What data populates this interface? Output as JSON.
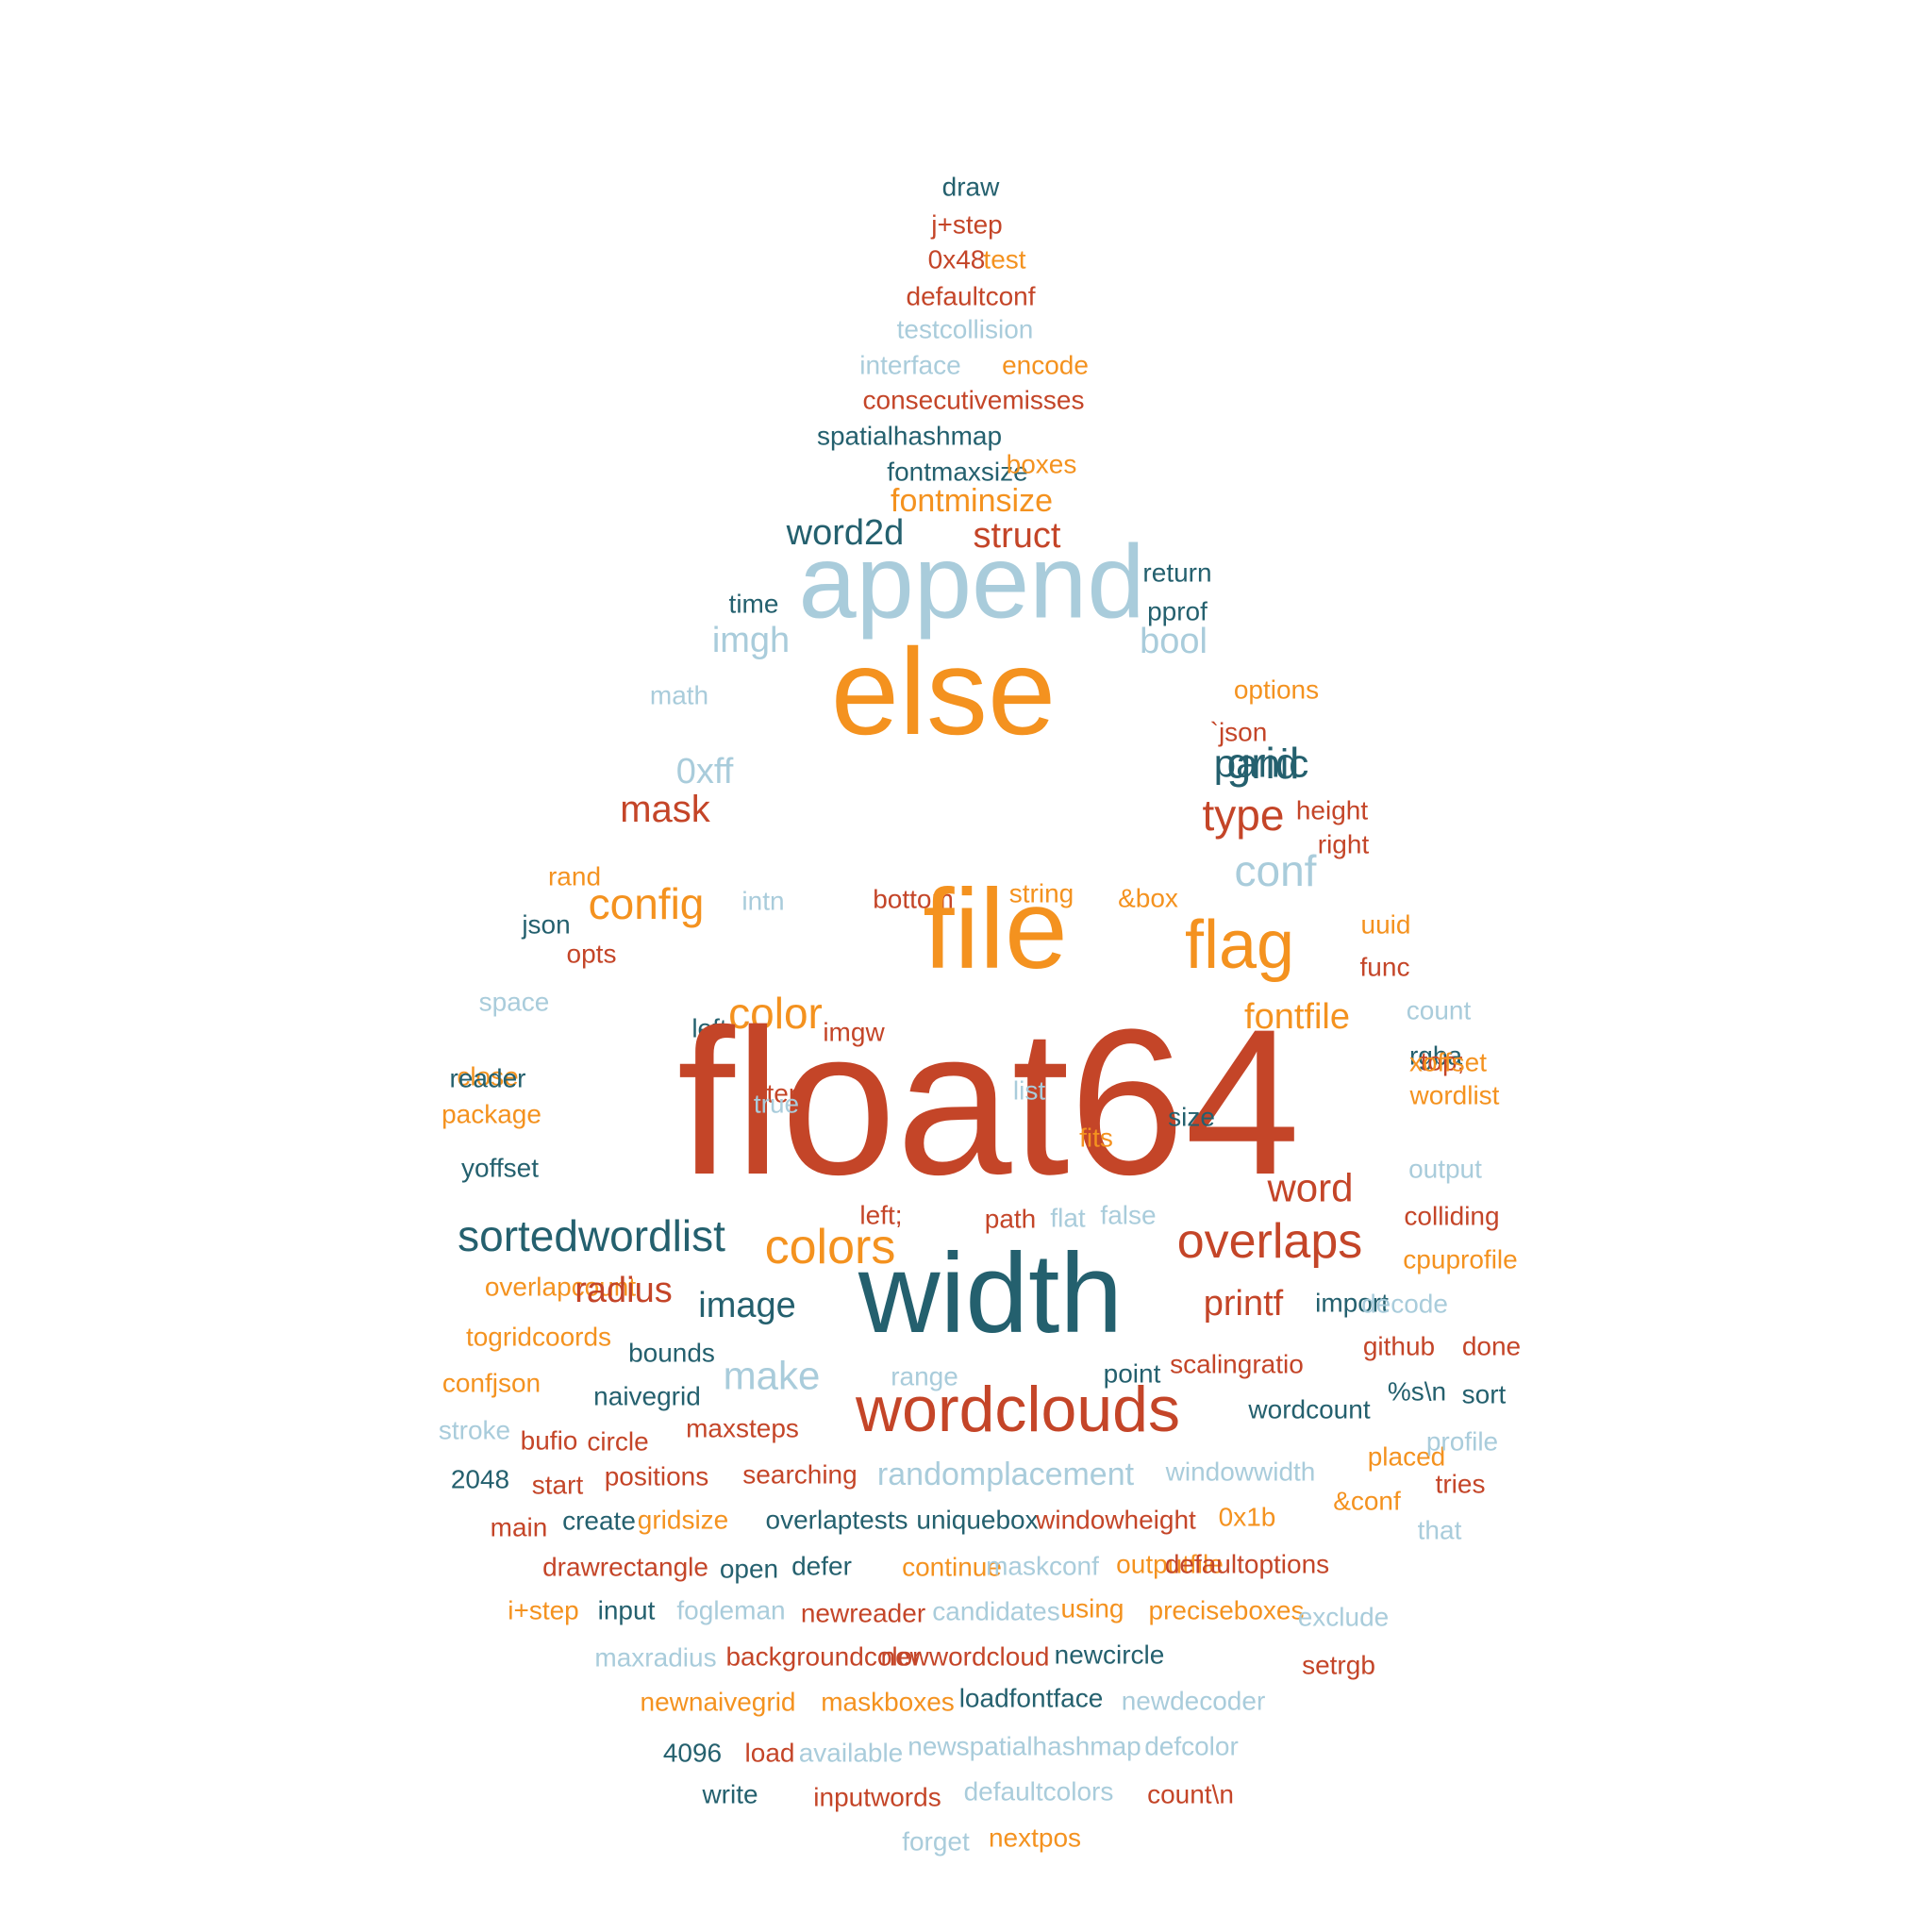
{
  "palette": {
    "red": "#c44528",
    "teal": "#24606e",
    "orange": "#f4921f",
    "light": "#a9ccdb"
  },
  "words": [
    {
      "text": "draw",
      "color": "teal"
    },
    {
      "text": "j+step",
      "color": "red"
    },
    {
      "text": "0x48",
      "color": "red"
    },
    {
      "text": "test",
      "color": "orange"
    },
    {
      "text": "defaultconf",
      "color": "red"
    },
    {
      "text": "testcollision",
      "color": "light"
    },
    {
      "text": "interface",
      "color": "light"
    },
    {
      "text": "encode",
      "color": "orange"
    },
    {
      "text": "consecutivemisses",
      "color": "red"
    },
    {
      "text": "spatialhashmap",
      "color": "teal"
    },
    {
      "text": "fontmaxsize",
      "color": "teal"
    },
    {
      "text": "boxes",
      "color": "orange"
    },
    {
      "text": "fontminsize",
      "color": "orange"
    },
    {
      "text": "word2d",
      "color": "teal"
    },
    {
      "text": "struct",
      "color": "red"
    },
    {
      "text": "append",
      "color": "light"
    },
    {
      "text": "return",
      "color": "teal"
    },
    {
      "text": "time",
      "color": "teal"
    },
    {
      "text": "pprof",
      "color": "teal"
    },
    {
      "text": "imgh",
      "color": "light"
    },
    {
      "text": "bool",
      "color": "light"
    },
    {
      "text": "math",
      "color": "light"
    },
    {
      "text": "options",
      "color": "orange"
    },
    {
      "text": "else",
      "color": "orange"
    },
    {
      "text": "`json",
      "color": "red"
    },
    {
      "text": "panic",
      "color": "teal"
    },
    {
      "text": "0xff",
      "color": "light"
    },
    {
      "text": "grid",
      "color": "teal"
    },
    {
      "text": "mask",
      "color": "red"
    },
    {
      "text": "type",
      "color": "red"
    },
    {
      "text": "height",
      "color": "red"
    },
    {
      "text": "right",
      "color": "red"
    },
    {
      "text": "rand",
      "color": "orange"
    },
    {
      "text": "conf",
      "color": "light"
    },
    {
      "text": "config",
      "color": "orange"
    },
    {
      "text": "intn",
      "color": "light"
    },
    {
      "text": "bottom",
      "color": "red"
    },
    {
      "text": "string",
      "color": "orange"
    },
    {
      "text": "&box",
      "color": "orange"
    },
    {
      "text": "json",
      "color": "teal"
    },
    {
      "text": "file",
      "color": "orange"
    },
    {
      "text": "flag",
      "color": "orange"
    },
    {
      "text": "uuid",
      "color": "orange"
    },
    {
      "text": "opts",
      "color": "red"
    },
    {
      "text": "func",
      "color": "red"
    },
    {
      "text": "color",
      "color": "orange"
    },
    {
      "text": "space",
      "color": "light"
    },
    {
      "text": "fontfile",
      "color": "orange"
    },
    {
      "text": "count",
      "color": "light"
    },
    {
      "text": "left",
      "color": "teal"
    },
    {
      "text": "imgw",
      "color": "red"
    },
    {
      "text": "rgba",
      "color": "teal"
    },
    {
      "text": "close",
      "color": "orange"
    },
    {
      "text": "top;",
      "color": "red"
    },
    {
      "text": "step",
      "color": "red"
    },
    {
      "text": "float64",
      "color": "red"
    },
    {
      "text": "reader",
      "color": "teal"
    },
    {
      "text": "xoffset",
      "color": "orange"
    },
    {
      "text": "list",
      "color": "light"
    },
    {
      "text": "wordlist",
      "color": "orange"
    },
    {
      "text": "true",
      "color": "light"
    },
    {
      "text": "package",
      "color": "orange"
    },
    {
      "text": "size",
      "color": "teal"
    },
    {
      "text": "fits",
      "color": "orange"
    },
    {
      "text": "yoffset",
      "color": "teal"
    },
    {
      "text": "output",
      "color": "light"
    },
    {
      "text": "word",
      "color": "red"
    },
    {
      "text": "left;",
      "color": "red"
    },
    {
      "text": "path",
      "color": "red"
    },
    {
      "text": "flat",
      "color": "light"
    },
    {
      "text": "false",
      "color": "light"
    },
    {
      "text": "colliding",
      "color": "red"
    },
    {
      "text": "sortedwordlist",
      "color": "teal"
    },
    {
      "text": "colors",
      "color": "orange"
    },
    {
      "text": "overlaps",
      "color": "red"
    },
    {
      "text": "cpuprofile",
      "color": "orange"
    },
    {
      "text": "overlapcount",
      "color": "orange"
    },
    {
      "text": "radius",
      "color": "red"
    },
    {
      "text": "width",
      "color": "teal"
    },
    {
      "text": "image",
      "color": "teal"
    },
    {
      "text": "printf",
      "color": "red"
    },
    {
      "text": "import",
      "color": "teal"
    },
    {
      "text": "decode",
      "color": "light"
    },
    {
      "text": "togridcoords",
      "color": "orange"
    },
    {
      "text": "bounds",
      "color": "teal"
    },
    {
      "text": "github",
      "color": "red"
    },
    {
      "text": "done",
      "color": "red"
    },
    {
      "text": "make",
      "color": "light"
    },
    {
      "text": "range",
      "color": "light"
    },
    {
      "text": "point",
      "color": "teal"
    },
    {
      "text": "scalingratio",
      "color": "red"
    },
    {
      "text": "confjson",
      "color": "orange"
    },
    {
      "text": "naivegrid",
      "color": "teal"
    },
    {
      "text": "wordclouds",
      "color": "red"
    },
    {
      "text": "wordcount",
      "color": "teal"
    },
    {
      "text": "%s\\n",
      "color": "teal"
    },
    {
      "text": "sort",
      "color": "teal"
    },
    {
      "text": "stroke",
      "color": "light"
    },
    {
      "text": "bufio",
      "color": "red"
    },
    {
      "text": "circle",
      "color": "red"
    },
    {
      "text": "maxsteps",
      "color": "red"
    },
    {
      "text": "placed",
      "color": "orange"
    },
    {
      "text": "profile",
      "color": "light"
    },
    {
      "text": "2048",
      "color": "teal"
    },
    {
      "text": "start",
      "color": "red"
    },
    {
      "text": "positions",
      "color": "red"
    },
    {
      "text": "searching",
      "color": "red"
    },
    {
      "text": "randomplacement",
      "color": "light"
    },
    {
      "text": "windowwidth",
      "color": "light"
    },
    {
      "text": "tries",
      "color": "red"
    },
    {
      "text": "main",
      "color": "red"
    },
    {
      "text": "create",
      "color": "teal"
    },
    {
      "text": "gridsize",
      "color": "orange"
    },
    {
      "text": "overlaptests",
      "color": "teal"
    },
    {
      "text": "uniquebox",
      "color": "teal"
    },
    {
      "text": "windowheight",
      "color": "red"
    },
    {
      "text": "0x1b",
      "color": "orange"
    },
    {
      "text": "&conf",
      "color": "orange"
    },
    {
      "text": "that",
      "color": "light"
    },
    {
      "text": "drawrectangle",
      "color": "red"
    },
    {
      "text": "open",
      "color": "teal"
    },
    {
      "text": "defer",
      "color": "teal"
    },
    {
      "text": "continue",
      "color": "orange"
    },
    {
      "text": "maskconf",
      "color": "light"
    },
    {
      "text": "outputfile",
      "color": "orange"
    },
    {
      "text": "defaultoptions",
      "color": "red"
    },
    {
      "text": "i+step",
      "color": "orange"
    },
    {
      "text": "input",
      "color": "teal"
    },
    {
      "text": "fogleman",
      "color": "light"
    },
    {
      "text": "newreader",
      "color": "red"
    },
    {
      "text": "candidates",
      "color": "light"
    },
    {
      "text": "using",
      "color": "orange"
    },
    {
      "text": "preciseboxes",
      "color": "orange"
    },
    {
      "text": "exclude",
      "color": "light"
    },
    {
      "text": "maxradius",
      "color": "light"
    },
    {
      "text": "backgroundcolor",
      "color": "red"
    },
    {
      "text": "newwordcloud",
      "color": "red"
    },
    {
      "text": "newcircle",
      "color": "teal"
    },
    {
      "text": "setrgb",
      "color": "red"
    },
    {
      "text": "newnaivegrid",
      "color": "orange"
    },
    {
      "text": "maskboxes",
      "color": "orange"
    },
    {
      "text": "loadfontface",
      "color": "teal"
    },
    {
      "text": "newdecoder",
      "color": "light"
    },
    {
      "text": "4096",
      "color": "teal"
    },
    {
      "text": "load",
      "color": "red"
    },
    {
      "text": "available",
      "color": "light"
    },
    {
      "text": "newspatialhashmap",
      "color": "light"
    },
    {
      "text": "defcolor",
      "color": "light"
    },
    {
      "text": "write",
      "color": "teal"
    },
    {
      "text": "inputwords",
      "color": "red"
    },
    {
      "text": "defaultcolors",
      "color": "light"
    },
    {
      "text": "count\\n",
      "color": "red"
    },
    {
      "text": "forget",
      "color": "light"
    },
    {
      "text": "nextpos",
      "color": "orange"
    }
  ]
}
